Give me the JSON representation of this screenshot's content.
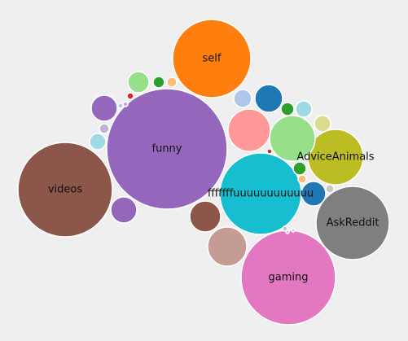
{
  "chart_data": {
    "type": "bubble",
    "title": "",
    "background": "#efefef",
    "bubbles": [
      {
        "label": "self",
        "color": "#ff7f0e"
      },
      {
        "label": "funny",
        "color": "#9467bd"
      },
      {
        "label": "videos",
        "color": "#8c564b"
      },
      {
        "label": "AdviceAnimals",
        "color": "#bcbd22"
      },
      {
        "label": "fffffffuuuuuuuuuuuu",
        "color": "#17becf"
      },
      {
        "label": "AskReddit",
        "color": "#7f7f7f"
      },
      {
        "label": "gaming",
        "color": "#e377c2"
      },
      {
        "label": "",
        "color": "#c5b0d5"
      },
      {
        "label": "",
        "color": "#98df8a"
      },
      {
        "label": "",
        "color": "#ff9896"
      },
      {
        "label": "",
        "color": "#1f77b4"
      },
      {
        "label": "",
        "color": "#aec7e8"
      },
      {
        "label": "",
        "color": "#2ca02c"
      },
      {
        "label": "",
        "color": "#9edae5"
      },
      {
        "label": "",
        "color": "#dbdb8d"
      },
      {
        "label": "",
        "color": "#8c564b"
      },
      {
        "label": "",
        "color": "#c49c94"
      },
      {
        "label": "",
        "color": "#9467bd"
      },
      {
        "label": "",
        "color": "#9467bd"
      },
      {
        "label": "",
        "color": "#98df8a"
      },
      {
        "label": "",
        "color": "#2ca02c"
      },
      {
        "label": "",
        "color": "#ffbb78"
      },
      {
        "label": "",
        "color": "#d62728"
      },
      {
        "label": "",
        "color": "#c5b0d5"
      },
      {
        "label": "",
        "color": "#9edae5"
      },
      {
        "label": "",
        "color": "#aec7e8"
      },
      {
        "label": "",
        "color": "#1f77b4"
      },
      {
        "label": "",
        "color": "#2ca02c"
      },
      {
        "label": "",
        "color": "#ffbb78"
      },
      {
        "label": "",
        "color": "#c7c7c7"
      },
      {
        "label": "",
        "color": "#d62728"
      },
      {
        "label": "",
        "color": "#c7c7c7"
      },
      {
        "label": "",
        "color": "#aec7e8"
      },
      {
        "label": "",
        "color": "#f7b6d2"
      }
    ]
  }
}
